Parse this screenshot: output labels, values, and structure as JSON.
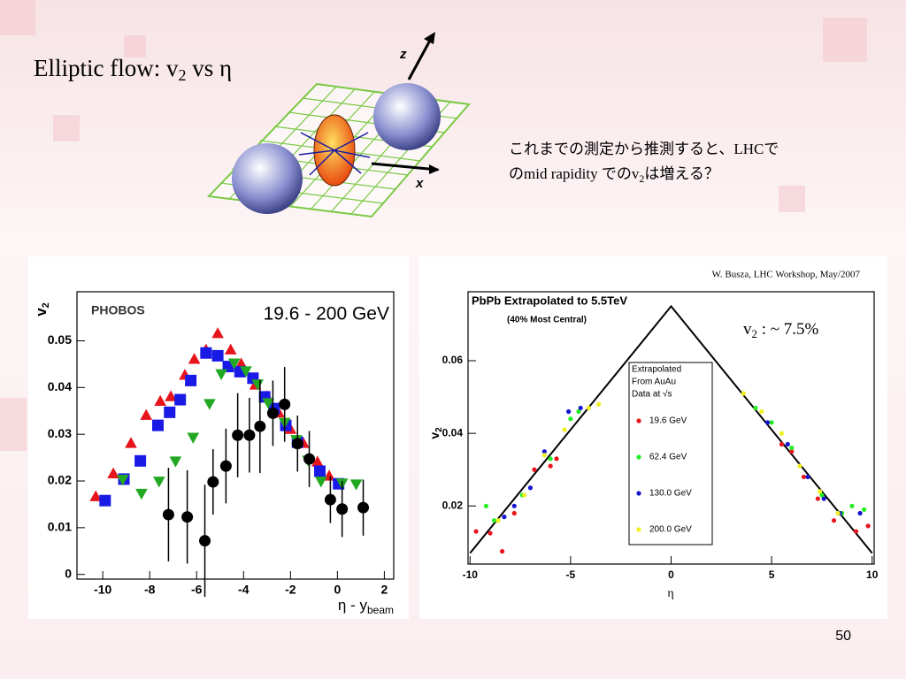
{
  "slide": {
    "title": [
      "Elliptic flow: v",
      "2",
      " vs η"
    ],
    "note": [
      [
        "これまでの測定から推測すると、LHCで"
      ],
      [
        "のmid rapidity でのv",
        "2",
        "は増える？"
      ]
    ],
    "diagram_labels": [
      "z",
      "x"
    ],
    "credit": "W. Busza, LHC Workshop, May/2007",
    "page_number": "50"
  },
  "chart_data": [
    {
      "type": "scatter",
      "title": "PHOBOS",
      "annotation": "19.6 - 200 GeV",
      "x_label": [
        "η - y",
        "beam"
      ],
      "y_label": [
        "v",
        "2"
      ],
      "xlim": [
        -11.1,
        2.4
      ],
      "ylim": [
        -0.001,
        0.0605
      ],
      "xticks": [
        -10,
        -8,
        -6,
        -4,
        -2,
        0,
        2
      ],
      "yticks": [
        0,
        0.01,
        0.02,
        0.03,
        0.04,
        0.05
      ],
      "grid": false,
      "series": [
        {
          "marker": "triangle-up",
          "color": "#e8141c",
          "x": [
            -10.3,
            -9.55,
            -8.8,
            -8.15,
            -7.55,
            -7.1,
            -6.5,
            -6.1,
            -5.6,
            -5.1,
            -4.55,
            -4.1,
            -3.5,
            -3.0,
            -2.5,
            -2.0,
            -1.45,
            -0.85,
            -0.35
          ],
          "values": [
            0.0166,
            0.0215,
            0.028,
            0.034,
            0.037,
            0.038,
            0.0426,
            0.046,
            0.048,
            0.0515,
            0.048,
            0.045,
            0.0405,
            0.038,
            0.0345,
            0.031,
            0.028,
            0.024,
            0.021
          ]
        },
        {
          "marker": "square",
          "color": "#1a1ae6",
          "x": [
            -9.9,
            -9.1,
            -8.4,
            -7.65,
            -7.15,
            -6.7,
            -6.25,
            -5.6,
            -5.1,
            -4.65,
            -4.15,
            -3.6,
            -3.1,
            -2.7,
            -2.2,
            -1.7,
            -0.75,
            0.05
          ],
          "values": [
            0.0158,
            0.0204,
            0.0243,
            0.0319,
            0.0347,
            0.0374,
            0.0415,
            0.0474,
            0.0468,
            0.0445,
            0.0434,
            0.042,
            0.038,
            0.0355,
            0.0319,
            0.0283,
            0.0221,
            0.0194
          ]
        },
        {
          "marker": "triangle-down",
          "color": "#22a822",
          "x": [
            -9.15,
            -8.35,
            -7.6,
            -6.9,
            -6.15,
            -5.45,
            -4.95,
            -4.4,
            -3.9,
            -3.4,
            -2.95,
            -2.25,
            -1.75,
            -1.25,
            -0.7,
            0.2,
            0.8
          ],
          "values": [
            0.0204,
            0.0174,
            0.02,
            0.0243,
            0.0294,
            0.0366,
            0.043,
            0.0453,
            0.0436,
            0.0408,
            0.0368,
            0.0326,
            0.0289,
            0.0245,
            0.02,
            0.0196,
            0.0194
          ]
        },
        {
          "marker": "circle",
          "color": "#000000",
          "x": [
            -7.2,
            -6.4,
            -5.65,
            -5.3,
            -4.75,
            -4.25,
            -3.75,
            -3.3,
            -2.75,
            -2.25,
            -1.7,
            -1.2,
            -0.3,
            0.2,
            1.1
          ],
          "values": [
            0.0128,
            0.0123,
            0.0072,
            0.0198,
            0.0232,
            0.0298,
            0.0298,
            0.0317,
            0.0345,
            0.0364,
            0.028,
            0.0247,
            0.016,
            0.014,
            0.0143
          ],
          "errors": [
            0.01,
            0.01,
            0.012,
            0.007,
            0.008,
            0.009,
            0.008,
            0.01,
            0.007,
            0.008,
            0.006,
            0.006,
            0.005,
            0.006,
            0.006
          ]
        }
      ]
    },
    {
      "type": "scatter",
      "title": "PbPb Extrapolated to 5.5TeV",
      "subtitle": "(40% Most Central)",
      "annotation": [
        "v",
        "2",
        " : ~ 7.5%"
      ],
      "x_label": "η",
      "y_label": [
        "v",
        "2"
      ],
      "legend_title": [
        "Extrapolated",
        "From AuAu",
        "Data at √s"
      ],
      "xlim": [
        -10.1,
        10.1
      ],
      "ylim": [
        0.004,
        0.079
      ],
      "xticks": [
        -10,
        -5,
        0,
        5,
        10
      ],
      "yticks": [
        0.02,
        0.04,
        0.06
      ],
      "grid": false,
      "fit": {
        "color": "#000000",
        "x": [
          -10,
          0,
          10
        ],
        "values": [
          0.007,
          0.075,
          0.007
        ]
      },
      "series": [
        {
          "name": "19.6 GeV",
          "marker": "dot",
          "color": "#e8141c",
          "x": [
            -9.7,
            -9.0,
            -8.4,
            -7.8,
            -6.8,
            -6.0,
            -5.7,
            5.5,
            6.0,
            6.6,
            7.3,
            8.1,
            9.2,
            9.8
          ],
          "values": [
            0.013,
            0.0125,
            0.0075,
            0.018,
            0.03,
            0.031,
            0.033,
            0.037,
            0.035,
            0.028,
            0.022,
            0.016,
            0.013,
            0.0145
          ]
        },
        {
          "name": "62.4 GeV",
          "marker": "dot",
          "color": "#22ee22",
          "x": [
            -9.2,
            -8.8,
            -7.4,
            -6.0,
            -5.0,
            -4.6,
            4.2,
            5.0,
            6.0,
            7.5,
            8.5,
            9.0,
            9.6
          ],
          "values": [
            0.02,
            0.016,
            0.023,
            0.033,
            0.044,
            0.046,
            0.047,
            0.043,
            0.036,
            0.023,
            0.018,
            0.02,
            0.019
          ]
        },
        {
          "name": "130.0 GeV",
          "marker": "dot",
          "color": "#1515d0",
          "x": [
            -8.3,
            -7.8,
            -7.0,
            -6.3,
            -5.1,
            -4.5,
            4.8,
            5.8,
            6.8,
            7.6,
            8.4,
            9.4
          ],
          "values": [
            0.017,
            0.02,
            0.025,
            0.035,
            0.046,
            0.047,
            0.043,
            0.037,
            0.028,
            0.022,
            0.018,
            0.018
          ]
        },
        {
          "name": "200.0 GeV",
          "marker": "dot",
          "color": "#f0f020",
          "x": [
            -8.6,
            -7.3,
            -6.3,
            -5.3,
            -4.1,
            -3.6,
            3.6,
            4.5,
            5.5,
            6.4,
            7.4,
            8.3
          ],
          "values": [
            0.016,
            0.023,
            0.034,
            0.041,
            0.047,
            0.048,
            0.051,
            0.046,
            0.04,
            0.031,
            0.024,
            0.018
          ]
        }
      ]
    }
  ]
}
